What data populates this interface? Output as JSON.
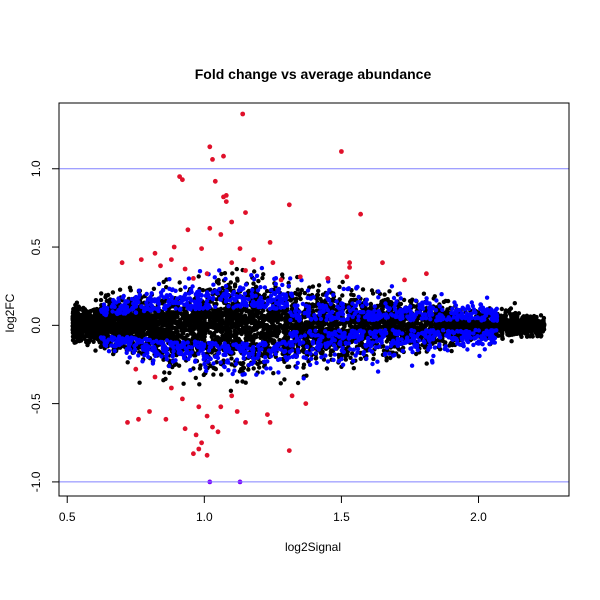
{
  "chart_data": {
    "type": "scatter",
    "title": "Fold change vs average abundance",
    "xlabel": "log2Signal",
    "ylabel": "log2FC",
    "xlim": [
      0.47,
      2.33
    ],
    "ylim": [
      -1.09,
      1.42
    ],
    "x_ticks": [
      0.5,
      1.0,
      1.5,
      2.0
    ],
    "x_tick_labels": [
      "0.5",
      "1.0",
      "1.5",
      "2.0"
    ],
    "y_ticks": [
      -1.0,
      -0.5,
      0.0,
      0.5,
      1.0
    ],
    "y_tick_labels": [
      "-1.0",
      "-0.5",
      "0.0",
      "0.5",
      "1.0"
    ],
    "reference_lines": [
      {
        "y": 1.0,
        "color": "#8080ff"
      },
      {
        "y": -1.0,
        "color": "#8080ff"
      }
    ],
    "colors": {
      "all_points": "#000000",
      "blue_points": "#0000ff",
      "red_points": "#e0102a",
      "reference_line": "#8080ff"
    },
    "series": [
      {
        "color": "#e0102a",
        "points": [
          [
            1.14,
            1.35
          ],
          [
            1.02,
            1.14
          ],
          [
            1.07,
            1.08
          ],
          [
            1.03,
            1.06
          ],
          [
            1.5,
            1.11
          ],
          [
            0.91,
            0.95
          ],
          [
            0.92,
            0.93
          ],
          [
            1.04,
            0.92
          ],
          [
            1.31,
            0.77
          ],
          [
            1.57,
            0.71
          ],
          [
            1.08,
            0.83
          ],
          [
            1.07,
            0.82
          ],
          [
            1.08,
            0.79
          ],
          [
            1.02,
            0.62
          ],
          [
            0.94,
            0.61
          ],
          [
            1.1,
            0.66
          ],
          [
            1.15,
            0.72
          ],
          [
            1.06,
            0.58
          ],
          [
            1.13,
            0.49
          ],
          [
            0.99,
            0.49
          ],
          [
            1.24,
            0.53
          ],
          [
            0.89,
            0.5
          ],
          [
            0.82,
            0.46
          ],
          [
            0.77,
            0.42
          ],
          [
            0.7,
            0.4
          ],
          [
            0.88,
            0.42
          ],
          [
            0.84,
            0.38
          ],
          [
            1.1,
            0.4
          ],
          [
            1.18,
            0.42
          ],
          [
            1.25,
            0.4
          ],
          [
            1.53,
            0.4
          ],
          [
            1.53,
            0.37
          ],
          [
            1.65,
            0.4
          ],
          [
            1.81,
            0.33
          ],
          [
            1.73,
            0.29
          ],
          [
            0.93,
            0.36
          ],
          [
            0.96,
            0.3
          ],
          [
            1.01,
            0.33
          ],
          [
            1.15,
            0.35
          ],
          [
            1.28,
            0.29
          ],
          [
            1.35,
            0.31
          ],
          [
            1.45,
            0.3
          ],
          [
            1.52,
            0.31
          ],
          [
            0.75,
            -0.28
          ],
          [
            0.82,
            -0.33
          ],
          [
            0.88,
            -0.4
          ],
          [
            0.92,
            -0.47
          ],
          [
            0.98,
            -0.52
          ],
          [
            1.01,
            -0.58
          ],
          [
            1.06,
            -0.52
          ],
          [
            1.1,
            -0.45
          ],
          [
            1.12,
            -0.55
          ],
          [
            0.86,
            -0.6
          ],
          [
            0.8,
            -0.55
          ],
          [
            0.76,
            -0.6
          ],
          [
            1.03,
            -0.65
          ],
          [
            0.97,
            -0.7
          ],
          [
            0.99,
            -0.75
          ],
          [
            0.96,
            -0.82
          ],
          [
            0.98,
            -0.79
          ],
          [
            1.31,
            -0.8
          ],
          [
            1.01,
            -0.83
          ],
          [
            1.23,
            -0.57
          ],
          [
            1.24,
            -0.62
          ],
          [
            1.37,
            -0.5
          ],
          [
            1.32,
            -0.45
          ],
          [
            0.72,
            -0.62
          ],
          [
            0.93,
            -0.66
          ],
          [
            1.15,
            -0.62
          ],
          [
            1.05,
            -0.68
          ]
        ]
      },
      {
        "color": "#8000ff",
        "points": [
          [
            1.02,
            -1.0
          ],
          [
            1.13,
            -1.0
          ]
        ]
      }
    ]
  }
}
